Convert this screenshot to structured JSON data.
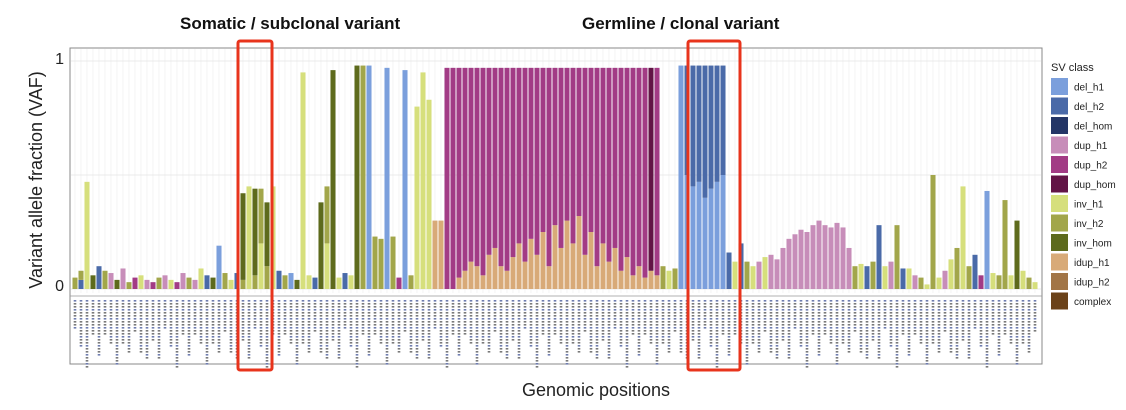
{
  "chart_data": {
    "type": "bar",
    "stacked": true,
    "xlabel": "Genomic positions",
    "ylabel": "Variant allele fraction (VAF)",
    "ylim": [
      0,
      1
    ],
    "yticks": [
      "0",
      "1"
    ],
    "grid": true,
    "legend": {
      "title": "SV class",
      "position": "right",
      "entries": [
        {
          "name": "del_h1",
          "color": "#7b9fdc"
        },
        {
          "name": "del_h2",
          "color": "#4a6aa8"
        },
        {
          "name": "del_hom",
          "color": "#233566"
        },
        {
          "name": "dup_h1",
          "color": "#c78db9"
        },
        {
          "name": "dup_h2",
          "color": "#a23b85"
        },
        {
          "name": "dup_hom",
          "color": "#621446"
        },
        {
          "name": "inv_h1",
          "color": "#d6df7c"
        },
        {
          "name": "inv_h2",
          "color": "#a2a64a"
        },
        {
          "name": "inv_hom",
          "color": "#5d6a1c"
        },
        {
          "name": "idup_h1",
          "color": "#d8aa78"
        },
        {
          "name": "idup_h2",
          "color": "#a27546"
        },
        {
          "name": "complex",
          "color": "#6b4219"
        }
      ]
    },
    "series_order": [
      "del_h1",
      "del_h2",
      "del_hom",
      "dup_h1",
      "dup_h2",
      "dup_hom",
      "inv_h1",
      "inv_h2",
      "inv_hom",
      "idup_h1",
      "idup_h2",
      "complex"
    ],
    "columns": [
      [
        {
          "c": "inv_h2",
          "v": 0.05
        }
      ],
      [
        {
          "c": "del_h2",
          "v": 0.04
        },
        {
          "c": "inv_h2",
          "v": 0.04
        }
      ],
      [
        {
          "c": "inv_h1",
          "v": 0.47
        }
      ],
      [
        {
          "c": "inv_hom",
          "v": 0.06
        }
      ],
      [
        {
          "c": "del_h2",
          "v": 0.1
        }
      ],
      [
        {
          "c": "inv_h2",
          "v": 0.08
        }
      ],
      [
        {
          "c": "dup_h1",
          "v": 0.07
        }
      ],
      [
        {
          "c": "inv_hom",
          "v": 0.04
        }
      ],
      [
        {
          "c": "dup_h1",
          "v": 0.09
        }
      ],
      [
        {
          "c": "inv_h2",
          "v": 0.03
        }
      ],
      [
        {
          "c": "dup_h2",
          "v": 0.05
        }
      ],
      [
        {
          "c": "inv_h1",
          "v": 0.06
        }
      ],
      [
        {
          "c": "dup_h1",
          "v": 0.04
        }
      ],
      [
        {
          "c": "dup_h2",
          "v": 0.03
        }
      ],
      [
        {
          "c": "inv_h2",
          "v": 0.05
        }
      ],
      [
        {
          "c": "dup_h1",
          "v": 0.06
        }
      ],
      [
        {
          "c": "inv_h1",
          "v": 0.04
        }
      ],
      [
        {
          "c": "dup_h2",
          "v": 0.03
        }
      ],
      [
        {
          "c": "dup_h1",
          "v": 0.07
        }
      ],
      [
        {
          "c": "inv_h2",
          "v": 0.05
        }
      ],
      [
        {
          "c": "dup_h1",
          "v": 0.04
        }
      ],
      [
        {
          "c": "inv_h1",
          "v": 0.09
        }
      ],
      [
        {
          "c": "del_h2",
          "v": 0.06
        }
      ],
      [
        {
          "c": "inv_hom",
          "v": 0.05
        }
      ],
      [
        {
          "c": "del_h1",
          "v": 0.19
        }
      ],
      [
        {
          "c": "inv_h2",
          "v": 0.07
        }
      ],
      [
        {
          "c": "inv_h1",
          "v": 0.04
        }
      ],
      [
        {
          "c": "del_h2",
          "v": 0.07
        }
      ],
      [
        {
          "c": "inv_h2",
          "v": 0.04
        },
        {
          "c": "inv_hom",
          "v": 0.38
        }
      ],
      [
        {
          "c": "inv_h1",
          "v": 0.45
        }
      ],
      [
        {
          "c": "inv_h2",
          "v": 0.06
        },
        {
          "c": "inv_hom",
          "v": 0.38
        }
      ],
      [
        {
          "c": "inv_h1",
          "v": 0.2
        },
        {
          "c": "inv_h2",
          "v": 0.24
        }
      ],
      [
        {
          "c": "inv_h2",
          "v": 0.1
        },
        {
          "c": "inv_hom",
          "v": 0.28
        }
      ],
      [
        {
          "c": "inv_h1",
          "v": 0.45
        }
      ],
      [
        {
          "c": "del_h2",
          "v": 0.08
        }
      ],
      [
        {
          "c": "inv_h2",
          "v": 0.06
        }
      ],
      [
        {
          "c": "del_h1",
          "v": 0.07
        }
      ],
      [
        {
          "c": "inv_hom",
          "v": 0.04
        }
      ],
      [
        {
          "c": "inv_h1",
          "v": 0.95
        }
      ],
      [
        {
          "c": "inv_h1",
          "v": 0.06
        }
      ],
      [
        {
          "c": "del_h2",
          "v": 0.05
        }
      ],
      [
        {
          "c": "inv_hom",
          "v": 0.38
        }
      ],
      [
        {
          "c": "inv_h1",
          "v": 0.2
        },
        {
          "c": "inv_h2",
          "v": 0.25
        }
      ],
      [
        {
          "c": "inv_hom",
          "v": 0.96
        }
      ],
      [
        {
          "c": "inv_h1",
          "v": 0.05
        }
      ],
      [
        {
          "c": "del_h2",
          "v": 0.07
        }
      ],
      [
        {
          "c": "inv_h1",
          "v": 0.06
        }
      ],
      [
        {
          "c": "inv_hom",
          "v": 0.98
        }
      ],
      [
        {
          "c": "inv_h2",
          "v": 0.98
        }
      ],
      [
        {
          "c": "del_h1",
          "v": 0.98
        }
      ],
      [
        {
          "c": "inv_h2",
          "v": 0.23
        }
      ],
      [
        {
          "c": "inv_h2",
          "v": 0.22
        }
      ],
      [
        {
          "c": "del_h1",
          "v": 0.97
        }
      ],
      [
        {
          "c": "inv_h2",
          "v": 0.23
        }
      ],
      [
        {
          "c": "dup_h2",
          "v": 0.05
        }
      ],
      [
        {
          "c": "del_h1",
          "v": 0.96
        }
      ],
      [
        {
          "c": "inv_h2",
          "v": 0.06
        }
      ],
      [
        {
          "c": "inv_h1",
          "v": 0.8
        }
      ],
      [
        {
          "c": "inv_h1",
          "v": 0.95
        }
      ],
      [
        {
          "c": "inv_h1",
          "v": 0.83
        }
      ],
      [
        {
          "c": "idup_h1",
          "v": 0.3
        }
      ],
      [
        {
          "c": "idup_h1",
          "v": 0.3
        }
      ],
      [
        {
          "c": "dup_h2",
          "v": 0.97
        }
      ],
      [
        {
          "c": "dup_h2",
          "v": 0.97
        }
      ],
      [
        {
          "c": "idup_h1",
          "v": 0.05
        },
        {
          "c": "dup_h2",
          "v": 0.92
        }
      ],
      [
        {
          "c": "idup_h1",
          "v": 0.08
        },
        {
          "c": "dup_h2",
          "v": 0.89
        }
      ],
      [
        {
          "c": "idup_h1",
          "v": 0.12
        },
        {
          "c": "dup_h2",
          "v": 0.85
        }
      ],
      [
        {
          "c": "idup_h1",
          "v": 0.1
        },
        {
          "c": "dup_h2",
          "v": 0.87
        }
      ],
      [
        {
          "c": "idup_h1",
          "v": 0.06
        },
        {
          "c": "dup_h2",
          "v": 0.91
        }
      ],
      [
        {
          "c": "idup_h1",
          "v": 0.15
        },
        {
          "c": "dup_h2",
          "v": 0.82
        }
      ],
      [
        {
          "c": "idup_h1",
          "v": 0.18
        },
        {
          "c": "dup_h2",
          "v": 0.79
        }
      ],
      [
        {
          "c": "idup_h1",
          "v": 0.1
        },
        {
          "c": "dup_h2",
          "v": 0.87
        }
      ],
      [
        {
          "c": "idup_h1",
          "v": 0.08
        },
        {
          "c": "dup_h2",
          "v": 0.89
        }
      ],
      [
        {
          "c": "idup_h1",
          "v": 0.14
        },
        {
          "c": "dup_h2",
          "v": 0.83
        }
      ],
      [
        {
          "c": "idup_h1",
          "v": 0.2
        },
        {
          "c": "dup_h2",
          "v": 0.77
        }
      ],
      [
        {
          "c": "idup_h1",
          "v": 0.12
        },
        {
          "c": "dup_h2",
          "v": 0.85
        }
      ],
      [
        {
          "c": "idup_h1",
          "v": 0.22
        },
        {
          "c": "dup_h2",
          "v": 0.75
        }
      ],
      [
        {
          "c": "idup_h1",
          "v": 0.15
        },
        {
          "c": "dup_h2",
          "v": 0.82
        }
      ],
      [
        {
          "c": "idup_h1",
          "v": 0.25
        },
        {
          "c": "dup_h2",
          "v": 0.72
        }
      ],
      [
        {
          "c": "idup_h1",
          "v": 0.1
        },
        {
          "c": "dup_h2",
          "v": 0.87
        }
      ],
      [
        {
          "c": "idup_h1",
          "v": 0.28
        },
        {
          "c": "dup_h2",
          "v": 0.69
        }
      ],
      [
        {
          "c": "idup_h1",
          "v": 0.18
        },
        {
          "c": "dup_h2",
          "v": 0.79
        }
      ],
      [
        {
          "c": "idup_h1",
          "v": 0.3
        },
        {
          "c": "dup_h2",
          "v": 0.67
        }
      ],
      [
        {
          "c": "idup_h1",
          "v": 0.2
        },
        {
          "c": "dup_h2",
          "v": 0.77
        }
      ],
      [
        {
          "c": "idup_h1",
          "v": 0.32
        },
        {
          "c": "dup_h2",
          "v": 0.65
        }
      ],
      [
        {
          "c": "idup_h1",
          "v": 0.15
        },
        {
          "c": "dup_h2",
          "v": 0.82
        }
      ],
      [
        {
          "c": "idup_h1",
          "v": 0.25
        },
        {
          "c": "dup_h2",
          "v": 0.72
        }
      ],
      [
        {
          "c": "idup_h1",
          "v": 0.1
        },
        {
          "c": "dup_h2",
          "v": 0.87
        }
      ],
      [
        {
          "c": "idup_h1",
          "v": 0.2
        },
        {
          "c": "dup_h2",
          "v": 0.77
        }
      ],
      [
        {
          "c": "idup_h1",
          "v": 0.12
        },
        {
          "c": "dup_h2",
          "v": 0.85
        }
      ],
      [
        {
          "c": "idup_h1",
          "v": 0.18
        },
        {
          "c": "dup_h2",
          "v": 0.79
        }
      ],
      [
        {
          "c": "idup_h1",
          "v": 0.08
        },
        {
          "c": "dup_h2",
          "v": 0.89
        }
      ],
      [
        {
          "c": "idup_h1",
          "v": 0.14
        },
        {
          "c": "dup_h2",
          "v": 0.83
        }
      ],
      [
        {
          "c": "idup_h1",
          "v": 0.06
        },
        {
          "c": "dup_h2",
          "v": 0.91
        }
      ],
      [
        {
          "c": "idup_h1",
          "v": 0.1
        },
        {
          "c": "dup_h2",
          "v": 0.87
        }
      ],
      [
        {
          "c": "idup_h1",
          "v": 0.05
        },
        {
          "c": "dup_h2",
          "v": 0.92
        }
      ],
      [
        {
          "c": "idup_h1",
          "v": 0.08
        },
        {
          "c": "dup_hom",
          "v": 0.89
        }
      ],
      [
        {
          "c": "idup_h1",
          "v": 0.06
        },
        {
          "c": "dup_h2",
          "v": 0.91
        }
      ],
      [
        {
          "c": "inv_h2",
          "v": 0.1
        }
      ],
      [
        {
          "c": "inv_h1",
          "v": 0.08
        }
      ],
      [
        {
          "c": "inv_h2",
          "v": 0.09
        }
      ],
      [
        {
          "c": "del_h1",
          "v": 0.98
        }
      ],
      [
        {
          "c": "del_h1",
          "v": 0.5
        },
        {
          "c": "del_h2",
          "v": 0.48
        }
      ],
      [
        {
          "c": "del_h1",
          "v": 0.45
        },
        {
          "c": "del_h2",
          "v": 0.53
        }
      ],
      [
        {
          "c": "del_h1",
          "v": 0.47
        },
        {
          "c": "del_h2",
          "v": 0.51
        }
      ],
      [
        {
          "c": "del_h1",
          "v": 0.4
        },
        {
          "c": "del_h2",
          "v": 0.58
        }
      ],
      [
        {
          "c": "del_h1",
          "v": 0.44
        },
        {
          "c": "del_h2",
          "v": 0.54
        }
      ],
      [
        {
          "c": "del_h1",
          "v": 0.47
        },
        {
          "c": "del_h2",
          "v": 0.51
        }
      ],
      [
        {
          "c": "del_h1",
          "v": 0.5
        },
        {
          "c": "del_h2",
          "v": 0.48
        }
      ],
      [
        {
          "c": "del_h2",
          "v": 0.16
        }
      ],
      [
        {
          "c": "inv_h1",
          "v": 0.12
        }
      ],
      [
        {
          "c": "del_h2",
          "v": 0.2
        }
      ],
      [
        {
          "c": "inv_h2",
          "v": 0.12
        }
      ],
      [
        {
          "c": "inv_h1",
          "v": 0.1
        }
      ],
      [
        {
          "c": "dup_h1",
          "v": 0.12
        }
      ],
      [
        {
          "c": "inv_h1",
          "v": 0.14
        }
      ],
      [
        {
          "c": "dup_h1",
          "v": 0.15
        }
      ],
      [
        {
          "c": "dup_h1",
          "v": 0.13
        }
      ],
      [
        {
          "c": "dup_h1",
          "v": 0.18
        }
      ],
      [
        {
          "c": "dup_h1",
          "v": 0.22
        }
      ],
      [
        {
          "c": "dup_h1",
          "v": 0.24
        }
      ],
      [
        {
          "c": "dup_h1",
          "v": 0.26
        }
      ],
      [
        {
          "c": "dup_h1",
          "v": 0.25
        }
      ],
      [
        {
          "c": "dup_h1",
          "v": 0.28
        }
      ],
      [
        {
          "c": "dup_h1",
          "v": 0.3
        }
      ],
      [
        {
          "c": "dup_h1",
          "v": 0.28
        }
      ],
      [
        {
          "c": "dup_h1",
          "v": 0.27
        }
      ],
      [
        {
          "c": "dup_h1",
          "v": 0.29
        }
      ],
      [
        {
          "c": "dup_h1",
          "v": 0.27
        }
      ],
      [
        {
          "c": "dup_h1",
          "v": 0.18
        }
      ],
      [
        {
          "c": "inv_h2",
          "v": 0.1
        }
      ],
      [
        {
          "c": "inv_h1",
          "v": 0.11
        }
      ],
      [
        {
          "c": "del_h2",
          "v": 0.1
        }
      ],
      [
        {
          "c": "inv_h2",
          "v": 0.12
        }
      ],
      [
        {
          "c": "del_h2",
          "v": 0.28
        }
      ],
      [
        {
          "c": "inv_h1",
          "v": 0.1
        }
      ],
      [
        {
          "c": "dup_h1",
          "v": 0.12
        }
      ],
      [
        {
          "c": "inv_h2",
          "v": 0.28
        }
      ],
      [
        {
          "c": "del_h2",
          "v": 0.09
        }
      ],
      [
        {
          "c": "inv_h1",
          "v": 0.09
        }
      ],
      [
        {
          "c": "dup_h1",
          "v": 0.06
        }
      ],
      [
        {
          "c": "inv_h2",
          "v": 0.05
        }
      ],
      [
        {
          "c": "inv_h1",
          "v": 0.02
        }
      ],
      [
        {
          "c": "inv_h2",
          "v": 0.5
        }
      ],
      [
        {
          "c": "inv_h1",
          "v": 0.05
        }
      ],
      [
        {
          "c": "dup_h1",
          "v": 0.08
        }
      ],
      [
        {
          "c": "inv_h1",
          "v": 0.13
        }
      ],
      [
        {
          "c": "inv_h2",
          "v": 0.18
        }
      ],
      [
        {
          "c": "inv_h1",
          "v": 0.45
        }
      ],
      [
        {
          "c": "inv_h2",
          "v": 0.1
        }
      ],
      [
        {
          "c": "del_h2",
          "v": 0.15
        }
      ],
      [
        {
          "c": "dup_h2",
          "v": 0.06
        }
      ],
      [
        {
          "c": "del_h1",
          "v": 0.43
        }
      ],
      [
        {
          "c": "inv_h1",
          "v": 0.07
        }
      ],
      [
        {
          "c": "inv_h2",
          "v": 0.06
        }
      ],
      [
        {
          "c": "inv_h2",
          "v": 0.39
        }
      ],
      [
        {
          "c": "inv_h1",
          "v": 0.06
        }
      ],
      [
        {
          "c": "inv_hom",
          "v": 0.3
        }
      ],
      [
        {
          "c": "inv_h1",
          "v": 0.08
        }
      ],
      [
        {
          "c": "inv_h2",
          "v": 0.05
        }
      ],
      [
        {
          "c": "inv_h1",
          "v": 0.03
        }
      ]
    ],
    "highlights": [
      {
        "label": "Somatic / subclonal variant",
        "from": 28,
        "to": 32
      },
      {
        "label": "Germline / clonal variant",
        "from": 103,
        "to": 110
      }
    ]
  }
}
